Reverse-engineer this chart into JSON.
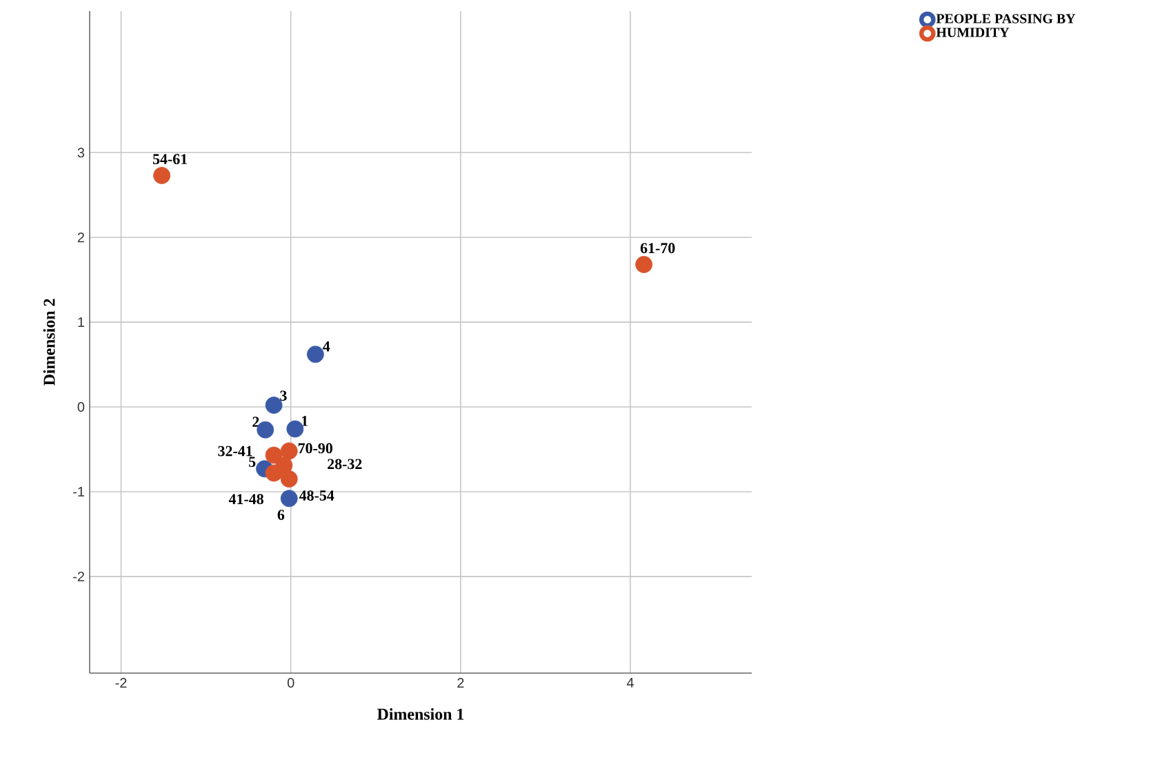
{
  "chart_data": {
    "type": "scatter",
    "xlabel": "Dimension 1",
    "ylabel": "Dimension 2",
    "xlim": [
      -2.37,
      5.43
    ],
    "ylim": [
      -3.14,
      4.67
    ],
    "xticks": [
      -2,
      0,
      2,
      4
    ],
    "yticks": [
      -2,
      -1,
      0,
      1,
      2,
      3
    ],
    "grid": true,
    "legend": "top right",
    "marker": "circle",
    "series": [
      {
        "name": "PEOPLE PASSING BY",
        "color": "#3a5aa8",
        "x": [
          0.05,
          -0.3,
          -0.2,
          0.29,
          -0.31,
          -0.02
        ],
        "values": [
          -0.26,
          -0.27,
          0.02,
          0.62,
          -0.73,
          -1.08
        ]
      },
      {
        "name": "HUMIDITY",
        "color": "#d9532b",
        "x": [
          -0.08,
          -0.2,
          -0.2,
          -0.02,
          -1.52,
          4.16,
          -0.02
        ],
        "values": [
          -0.69,
          -0.57,
          -0.78,
          -0.85,
          2.73,
          1.68,
          -0.52
        ]
      }
    ],
    "annotations": [
      {
        "text": "1",
        "x": 0.05,
        "y": -0.26
      },
      {
        "text": "2",
        "x": -0.3,
        "y": -0.27
      },
      {
        "text": "3",
        "x": -0.2,
        "y": 0.02
      },
      {
        "text": "4",
        "x": 0.29,
        "y": 0.62
      },
      {
        "text": "5",
        "x": -0.31,
        "y": -0.73
      },
      {
        "text": "6",
        "x": -0.02,
        "y": -1.08
      },
      {
        "text": "28-32",
        "x": -0.08,
        "y": -0.69
      },
      {
        "text": "32-41",
        "x": -0.2,
        "y": -0.57
      },
      {
        "text": "41-48",
        "x": -0.2,
        "y": -0.78
      },
      {
        "text": "48-54",
        "x": -0.02,
        "y": -0.85
      },
      {
        "text": "54-61",
        "x": -1.52,
        "y": 2.73
      },
      {
        "text": "61-70",
        "x": 4.16,
        "y": 1.68
      },
      {
        "text": "70-90",
        "x": -0.02,
        "y": -0.52
      }
    ]
  }
}
